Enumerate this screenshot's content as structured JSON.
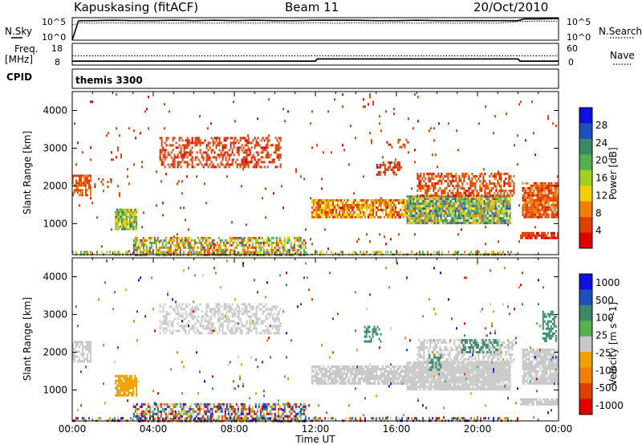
{
  "header": {
    "station": "Kapuskasing (fitACF)",
    "beam": "Beam 11",
    "date": "20/Oct/2010"
  },
  "noise_panel": {
    "left_label": "N.Sky",
    "right_label": "N.Search",
    "ticks_left": [
      "10^5",
      "10^0"
    ],
    "ticks_right": [
      "10^5",
      "10^0"
    ]
  },
  "freq_panel": {
    "left_label_1": "Freq.",
    "left_label_2": "[MHz]",
    "right_label": "Nave",
    "ticks_left": [
      "18",
      "8"
    ],
    "ticks_right": [
      "60",
      "0"
    ]
  },
  "cpid": {
    "label": "CPID",
    "value": "themis 3300"
  },
  "x_axis": {
    "label": "Time UT",
    "ticks": [
      "00:00",
      "04:00",
      "08:00",
      "12:00",
      "16:00",
      "20:00",
      "00:00"
    ],
    "range_hours": [
      0,
      24
    ]
  },
  "colors": {
    "power_scale": [
      "#1010e0",
      "#2050c0",
      "#3a8a6a",
      "#55b050",
      "#a0d020",
      "#f0d000",
      "#f08000",
      "#e04000",
      "#e00000"
    ],
    "velocity_scale": [
      "#1010e0",
      "#2050c0",
      "#3a8a6a",
      "#55b050",
      "#c8c8c8",
      "#f0a000",
      "#f08000",
      "#e04000",
      "#e00000"
    ]
  },
  "chart_data": [
    {
      "type": "line",
      "x_range": [
        0,
        24
      ],
      "series": [
        {
          "x": [
            0,
            0.3,
            0.5,
            1,
            2,
            3,
            4,
            5,
            6,
            7,
            8,
            9,
            10,
            11,
            12,
            13,
            14,
            15,
            16,
            17,
            18,
            19,
            20,
            21,
            22,
            22.3,
            23,
            24
          ],
          "y": [
            0,
            4.5,
            4.6,
            4.6,
            4.7,
            4.6,
            4.6,
            4.7,
            4.6,
            4.7,
            4.6,
            4.7,
            4.6,
            4.6,
            4.7,
            4.7,
            4.7,
            4.6,
            4.6,
            4.7,
            4.6,
            4.6,
            4.6,
            4.6,
            4.6,
            5.0,
            5.0,
            5.1
          ]
        },
        {
          "x": [
            0,
            0.5,
            1,
            2,
            3,
            4,
            5,
            6,
            7,
            8,
            9,
            10,
            11,
            12,
            13,
            14,
            15,
            16,
            17,
            18,
            19,
            20,
            21,
            22,
            23,
            24
          ],
          "y": [
            3.6,
            4.1,
            4.0,
            4.1,
            4.0,
            4.1,
            4.0,
            4.1,
            4.0,
            4.1,
            4.0,
            4.1,
            4.0,
            4.1,
            4.0,
            4.1,
            4.0,
            4.1,
            4.0,
            4.1,
            4.0,
            4.1,
            4.0,
            4.4,
            4.5,
            4.5
          ]
        }
      ]
    },
    {
      "type": "line",
      "x_range": [
        0,
        24
      ],
      "series": [
        {
          "x": [
            0,
            24
          ],
          "y": [
            12.2,
            12.2
          ]
        },
        {
          "x": [
            0,
            12,
            12.1,
            22,
            22.1,
            24
          ],
          "y": [
            9.5,
            9.5,
            10.6,
            10.6,
            9.5,
            9.5
          ]
        }
      ]
    },
    {
      "type": "scatter",
      "ylabel": "Slant Range [km]",
      "yticks": [
        1000,
        2000,
        3000,
        4000
      ],
      "y_range": [
        180,
        4500
      ],
      "colorbar": {
        "label": "Power [dB]",
        "ticks": [
          4,
          8,
          12,
          16,
          20,
          24,
          28
        ],
        "range": [
          0,
          32
        ]
      },
      "regions": [
        {
          "t": [
            0.0,
            0.9
          ],
          "r": [
            1750,
            2300
          ],
          "v": [
            4,
            9
          ],
          "d": 0.7
        },
        {
          "t": [
            1.0,
            1.9
          ],
          "r": [
            1900,
            2200
          ],
          "v": [
            3,
            7
          ],
          "d": 0.25
        },
        {
          "t": [
            2.1,
            3.2
          ],
          "r": [
            850,
            1400
          ],
          "v": [
            10,
            24
          ],
          "d": 0.85
        },
        {
          "t": [
            4.3,
            10.3
          ],
          "r": [
            2500,
            3300
          ],
          "v": [
            3,
            6
          ],
          "d": 0.45
        },
        {
          "t": [
            11.8,
            16.5
          ],
          "r": [
            1150,
            1650
          ],
          "v": [
            3,
            14
          ],
          "d": 0.8
        },
        {
          "t": [
            16.5,
            21.6
          ],
          "r": [
            1000,
            1750
          ],
          "v": [
            8,
            28
          ],
          "d": 0.92
        },
        {
          "t": [
            17.0,
            21.8
          ],
          "r": [
            1750,
            2350
          ],
          "v": [
            3,
            8
          ],
          "d": 0.55
        },
        {
          "t": [
            22.2,
            24.0
          ],
          "r": [
            1200,
            2100
          ],
          "v": [
            3,
            10
          ],
          "d": 0.85
        },
        {
          "t": [
            22.1,
            24.0
          ],
          "r": [
            600,
            780
          ],
          "v": [
            3,
            6
          ],
          "d": 0.8
        },
        {
          "t": [
            15.0,
            16.2
          ],
          "r": [
            2300,
            2650
          ],
          "v": [
            3,
            5
          ],
          "d": 0.35
        },
        {
          "t": [
            15.5,
            16.6
          ],
          "r": [
            3000,
            3250
          ],
          "v": [
            3,
            5
          ],
          "d": 0.3
        },
        {
          "t": [
            3.0,
            11.5
          ],
          "r": [
            200,
            650
          ],
          "v": [
            3,
            26
          ],
          "d": 0.6
        },
        {
          "t": [
            0.0,
            22.0
          ],
          "r": [
            200,
            280
          ],
          "v": [
            6,
            22
          ],
          "d": 0.4
        },
        {
          "t": [
            0.0,
            24.0
          ],
          "r": [
            300,
            4450
          ],
          "v": [
            3,
            6
          ],
          "d": 0.012
        }
      ]
    },
    {
      "type": "scatter",
      "ylabel": "Slant Range [km]",
      "yticks": [
        1000,
        2000,
        3000,
        4000
      ],
      "y_range": [
        180,
        4500
      ],
      "colorbar": {
        "label": "Velocity [m s^-1]",
        "ticks": [
          "1000",
          "500",
          "100",
          "25",
          "-25",
          "-100",
          "-500",
          "-1000"
        ]
      },
      "regions": [
        {
          "t": [
            0.0,
            0.9
          ],
          "r": [
            1750,
            2300
          ],
          "v": [
            4,
            4
          ],
          "d": 0.7
        },
        {
          "t": [
            2.1,
            3.2
          ],
          "r": [
            850,
            1400
          ],
          "v": [
            3,
            3
          ],
          "d": 0.85
        },
        {
          "t": [
            4.3,
            10.3
          ],
          "r": [
            2500,
            3300
          ],
          "v": [
            4,
            4
          ],
          "d": 0.45
        },
        {
          "t": [
            11.8,
            16.5
          ],
          "r": [
            1150,
            1650
          ],
          "v": [
            4,
            4
          ],
          "d": 0.8
        },
        {
          "t": [
            16.5,
            21.6
          ],
          "r": [
            1000,
            1750
          ],
          "v": [
            4,
            4
          ],
          "d": 0.92
        },
        {
          "t": [
            17.0,
            21.8
          ],
          "r": [
            1750,
            2350
          ],
          "v": [
            4,
            4
          ],
          "d": 0.5
        },
        {
          "t": [
            22.2,
            24.0
          ],
          "r": [
            1200,
            2100
          ],
          "v": [
            4,
            4
          ],
          "d": 0.85
        },
        {
          "t": [
            22.1,
            24.0
          ],
          "r": [
            600,
            780
          ],
          "v": [
            4,
            4
          ],
          "d": 0.8
        },
        {
          "t": [
            14.4,
            15.2
          ],
          "r": [
            2300,
            2700
          ],
          "v": [
            6,
            6
          ],
          "d": 0.5
        },
        {
          "t": [
            17.6,
            18.2
          ],
          "r": [
            1550,
            1950
          ],
          "v": [
            6,
            6
          ],
          "d": 0.5
        },
        {
          "t": [
            19.2,
            21.0
          ],
          "r": [
            2000,
            2350
          ],
          "v": [
            6,
            6
          ],
          "d": 0.45
        },
        {
          "t": [
            23.2,
            23.9
          ],
          "r": [
            2300,
            3100
          ],
          "v": [
            6,
            6
          ],
          "d": 0.55
        },
        {
          "t": [
            3.0,
            11.5
          ],
          "r": [
            200,
            650
          ],
          "v": [
            0,
            8
          ],
          "d": 0.6
        },
        {
          "t": [
            0.0,
            22.0
          ],
          "r": [
            200,
            280
          ],
          "v": [
            0,
            8
          ],
          "d": 0.4
        },
        {
          "t": [
            0.0,
            24.0
          ],
          "r": [
            300,
            4450
          ],
          "v": [
            0,
            8
          ],
          "d": 0.012
        }
      ]
    }
  ]
}
